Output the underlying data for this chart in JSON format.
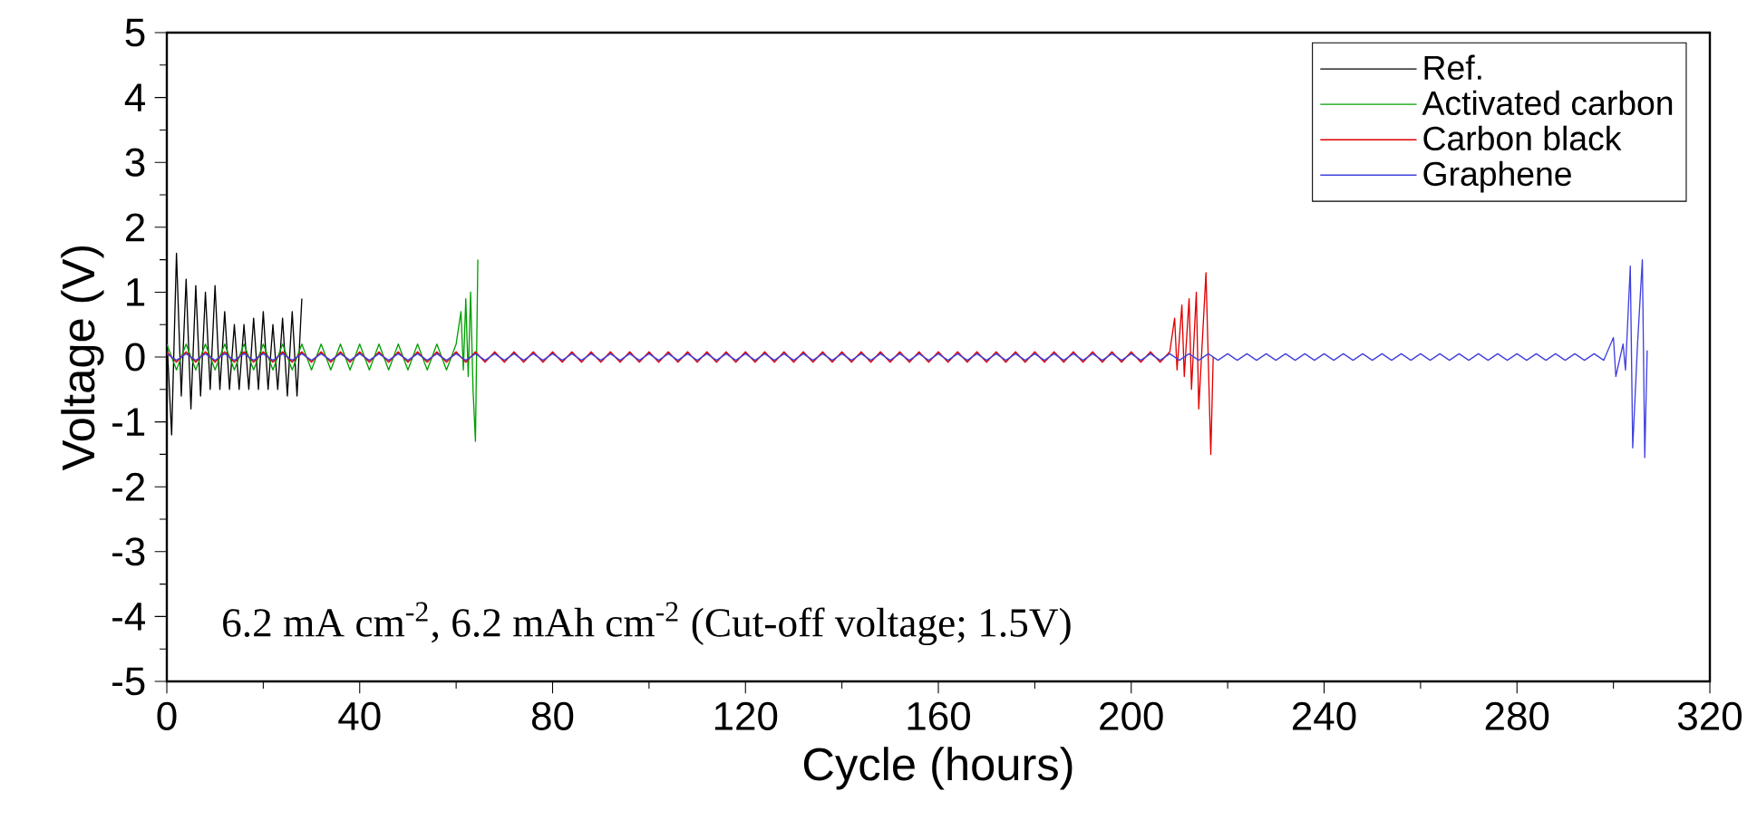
{
  "chart_data": {
    "type": "line",
    "xlabel": "Cycle (hours)",
    "ylabel": "Voltage (V)",
    "xlim": [
      0,
      320
    ],
    "xticks": [
      0,
      40,
      80,
      120,
      160,
      200,
      240,
      280,
      320
    ],
    "ylim": [
      -5,
      5
    ],
    "yticks": [
      -5,
      -4,
      -3,
      -2,
      -1,
      0,
      1,
      2,
      3,
      4,
      5
    ],
    "legend": "top right",
    "marker": "none",
    "line_style": "solid",
    "annotations": [
      "6.2 mA cm$^{-2}$, 6.2 mAh cm$^{-2}$ (Cut-off voltage; 1.5V)"
    ],
    "series": [
      {
        "name": "Ref.",
        "color": "#000000",
        "x": [
          0,
          1,
          2,
          3,
          4,
          5,
          6,
          7,
          8,
          9,
          10,
          11,
          12,
          13,
          14,
          15,
          16,
          17,
          18,
          19,
          20,
          21,
          22,
          23,
          24,
          25,
          26,
          27,
          28
        ],
        "values": [
          0.3,
          -1.2,
          1.6,
          -0.6,
          1.2,
          -0.8,
          1.1,
          -0.6,
          1.0,
          -0.5,
          1.1,
          -0.5,
          0.7,
          -0.5,
          0.5,
          -0.5,
          0.5,
          -0.5,
          0.6,
          -0.5,
          0.7,
          -0.5,
          0.5,
          -0.5,
          0.6,
          -0.6,
          0.7,
          -0.6,
          0.9
        ]
      },
      {
        "name": "Activated carbon",
        "color": "#00a000",
        "x": [
          0,
          2,
          4,
          6,
          8,
          10,
          12,
          14,
          16,
          18,
          20,
          22,
          24,
          26,
          28,
          30,
          32,
          34,
          36,
          38,
          40,
          42,
          44,
          46,
          48,
          50,
          52,
          54,
          56,
          58,
          60,
          61,
          61.5,
          62,
          62.5,
          63,
          63.5,
          64,
          64.5
        ],
        "values": [
          0.2,
          -0.2,
          0.2,
          -0.2,
          0.2,
          -0.2,
          0.2,
          -0.2,
          0.2,
          -0.2,
          0.2,
          -0.2,
          0.2,
          -0.2,
          0.2,
          -0.2,
          0.2,
          -0.2,
          0.2,
          -0.2,
          0.2,
          -0.2,
          0.2,
          -0.2,
          0.2,
          -0.2,
          0.2,
          -0.2,
          0.2,
          -0.2,
          0.2,
          0.7,
          -0.2,
          0.9,
          -0.3,
          1.0,
          -0.5,
          -1.3,
          1.5
        ]
      },
      {
        "name": "Carbon black",
        "color": "#e00000",
        "x": [
          0,
          2,
          4,
          6,
          8,
          10,
          12,
          14,
          16,
          18,
          20,
          22,
          24,
          26,
          28,
          30,
          32,
          34,
          36,
          38,
          40,
          42,
          44,
          46,
          48,
          50,
          52,
          54,
          56,
          58,
          60,
          62,
          64,
          66,
          68,
          70,
          72,
          74,
          76,
          78,
          80,
          82,
          84,
          86,
          88,
          90,
          92,
          94,
          96,
          98,
          100,
          102,
          104,
          106,
          108,
          110,
          112,
          114,
          116,
          118,
          120,
          122,
          124,
          126,
          128,
          130,
          132,
          134,
          136,
          138,
          140,
          142,
          144,
          146,
          148,
          150,
          152,
          154,
          156,
          158,
          160,
          162,
          164,
          166,
          168,
          170,
          172,
          174,
          176,
          178,
          180,
          182,
          184,
          186,
          188,
          190,
          192,
          194,
          196,
          198,
          200,
          202,
          204,
          206,
          208,
          209,
          209.5,
          210.5,
          211,
          212,
          212.5,
          213.5,
          214,
          215.5,
          216.5,
          217
        ],
        "values": [
          0.08,
          -0.08,
          0.08,
          -0.08,
          0.08,
          -0.08,
          0.08,
          -0.08,
          0.08,
          -0.08,
          0.08,
          -0.08,
          0.08,
          -0.08,
          0.08,
          -0.08,
          0.08,
          -0.08,
          0.08,
          -0.08,
          0.08,
          -0.08,
          0.08,
          -0.08,
          0.08,
          -0.08,
          0.08,
          -0.08,
          0.08,
          -0.08,
          0.08,
          -0.08,
          0.08,
          -0.08,
          0.08,
          -0.08,
          0.08,
          -0.08,
          0.08,
          -0.08,
          0.08,
          -0.08,
          0.08,
          -0.08,
          0.08,
          -0.08,
          0.08,
          -0.08,
          0.08,
          -0.08,
          0.08,
          -0.08,
          0.08,
          -0.08,
          0.08,
          -0.08,
          0.08,
          -0.08,
          0.08,
          -0.08,
          0.08,
          -0.08,
          0.08,
          -0.08,
          0.08,
          -0.08,
          0.08,
          -0.08,
          0.08,
          -0.08,
          0.08,
          -0.08,
          0.08,
          -0.08,
          0.08,
          -0.08,
          0.08,
          -0.08,
          0.08,
          -0.08,
          0.08,
          -0.08,
          0.08,
          -0.08,
          0.08,
          -0.08,
          0.08,
          -0.08,
          0.08,
          -0.08,
          0.08,
          -0.08,
          0.08,
          -0.08,
          0.08,
          -0.08,
          0.08,
          -0.08,
          0.08,
          -0.08,
          0.08,
          -0.08,
          0.08,
          -0.08,
          0.08,
          0.6,
          -0.2,
          0.8,
          -0.3,
          0.9,
          -0.5,
          1.0,
          -0.8,
          1.3,
          -1.5,
          0.0
        ]
      },
      {
        "name": "Graphene",
        "color": "#4040e0",
        "x": [
          0,
          2,
          4,
          6,
          8,
          10,
          12,
          14,
          16,
          18,
          20,
          22,
          24,
          26,
          28,
          30,
          32,
          34,
          36,
          38,
          40,
          42,
          44,
          46,
          48,
          50,
          52,
          54,
          56,
          58,
          60,
          62,
          64,
          66,
          68,
          70,
          72,
          74,
          76,
          78,
          80,
          82,
          84,
          86,
          88,
          90,
          92,
          94,
          96,
          98,
          100,
          102,
          104,
          106,
          108,
          110,
          112,
          114,
          116,
          118,
          120,
          122,
          124,
          126,
          128,
          130,
          132,
          134,
          136,
          138,
          140,
          142,
          144,
          146,
          148,
          150,
          152,
          154,
          156,
          158,
          160,
          162,
          164,
          166,
          168,
          170,
          172,
          174,
          176,
          178,
          180,
          182,
          184,
          186,
          188,
          190,
          192,
          194,
          196,
          198,
          200,
          202,
          204,
          206,
          208,
          210,
          212,
          214,
          216,
          218,
          220,
          222,
          224,
          226,
          228,
          230,
          232,
          234,
          236,
          238,
          240,
          242,
          244,
          246,
          248,
          250,
          252,
          254,
          256,
          258,
          260,
          262,
          264,
          266,
          268,
          270,
          272,
          274,
          276,
          278,
          280,
          282,
          284,
          286,
          288,
          290,
          292,
          294,
          296,
          298,
          300,
          300.5,
          302,
          302.5,
          303.5,
          304,
          305,
          306,
          306.5,
          307
        ],
        "values": [
          0.05,
          -0.05,
          0.05,
          -0.05,
          0.05,
          -0.05,
          0.05,
          -0.05,
          0.05,
          -0.05,
          0.05,
          -0.05,
          0.05,
          -0.05,
          0.05,
          -0.05,
          0.05,
          -0.05,
          0.05,
          -0.05,
          0.05,
          -0.05,
          0.05,
          -0.05,
          0.05,
          -0.05,
          0.05,
          -0.05,
          0.05,
          -0.05,
          0.05,
          -0.05,
          0.05,
          -0.05,
          0.05,
          -0.05,
          0.05,
          -0.05,
          0.05,
          -0.05,
          0.05,
          -0.05,
          0.05,
          -0.05,
          0.05,
          -0.05,
          0.05,
          -0.05,
          0.05,
          -0.05,
          0.05,
          -0.05,
          0.05,
          -0.05,
          0.05,
          -0.05,
          0.05,
          -0.05,
          0.05,
          -0.05,
          0.05,
          -0.05,
          0.05,
          -0.05,
          0.05,
          -0.05,
          0.05,
          -0.05,
          0.05,
          -0.05,
          0.05,
          -0.05,
          0.05,
          -0.05,
          0.05,
          -0.05,
          0.05,
          -0.05,
          0.05,
          -0.05,
          0.05,
          -0.05,
          0.05,
          -0.05,
          0.05,
          -0.05,
          0.05,
          -0.05,
          0.05,
          -0.05,
          0.05,
          -0.05,
          0.05,
          -0.05,
          0.05,
          -0.05,
          0.05,
          -0.05,
          0.05,
          -0.05,
          0.05,
          -0.05,
          0.05,
          -0.05,
          0.05,
          -0.05,
          0.05,
          -0.05,
          0.05,
          -0.05,
          0.05,
          -0.05,
          0.05,
          -0.05,
          0.05,
          -0.05,
          0.05,
          -0.05,
          0.05,
          -0.05,
          0.05,
          -0.05,
          0.05,
          -0.05,
          0.05,
          -0.05,
          0.05,
          -0.05,
          0.05,
          -0.05,
          0.05,
          -0.05,
          0.05,
          -0.05,
          0.05,
          -0.05,
          0.05,
          -0.05,
          0.05,
          -0.05,
          0.05,
          -0.05,
          0.05,
          -0.05,
          0.05,
          -0.05,
          0.05,
          -0.05,
          0.05,
          -0.05,
          0.3,
          -0.3,
          0.2,
          -0.2,
          1.4,
          -1.4,
          0.2,
          1.5,
          -1.55,
          0.1
        ]
      }
    ]
  }
}
